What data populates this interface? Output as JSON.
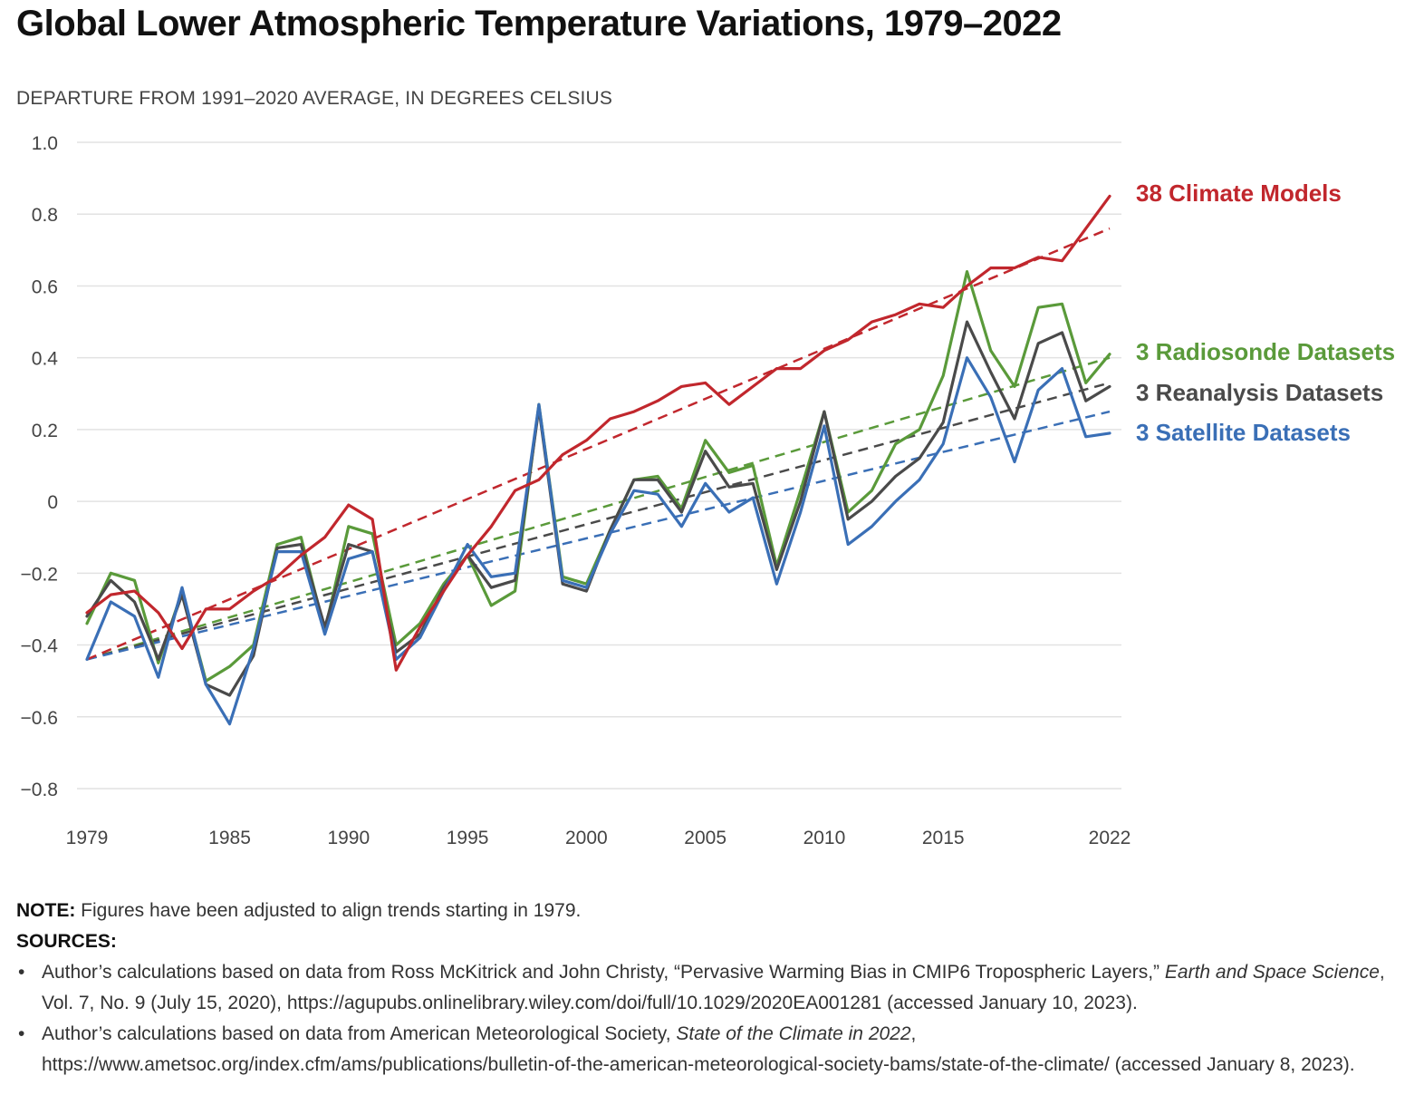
{
  "title": "Global Lower Atmospheric Temperature Variations, 1979–2022",
  "subtitle": "DEPARTURE FROM 1991–2020 AVERAGE, IN DEGREES CELSIUS",
  "note": {
    "label": "NOTE:",
    "text": " Figures have been adjusted to align trends starting in 1979."
  },
  "sources": {
    "label": "SOURCES:",
    "items": [
      {
        "pre": "Author’s calculations based on data from Ross McKitrick and John Christy, “Pervasive Warming Bias in CMIP6 Tropospheric Layers,” ",
        "ital": "Earth and Space Science",
        "post": ", Vol. 7, No. 9 (July 15, 2020), https://agupubs.onlinelibrary.wiley.com/doi/full/10.1029/2020EA001281 (accessed January 10, 2023)."
      },
      {
        "pre": "Author’s calculations based on data from American Meteorological Society, ",
        "ital": "State of the Climate in 2022",
        "post": ", https://www.ametsoc.org/index.cfm/ams/publications/bulletin-of-the-american-meteorological-society-bams/state-of-the-climate/ (accessed January 8, 2023)."
      }
    ]
  },
  "chart_data": {
    "type": "line",
    "x_start": 1979,
    "x_end": 2022,
    "xlim": [
      1979,
      2022
    ],
    "ylim": [
      -0.8,
      1.0
    ],
    "x_ticks": [
      1979,
      1985,
      1990,
      1995,
      2000,
      2005,
      2010,
      2015,
      2022
    ],
    "x_tick_labels": [
      "1979",
      "1985",
      "1990",
      "1995",
      "2000",
      "2005",
      "2010",
      "2015",
      "2022"
    ],
    "y_ticks": [
      1.0,
      0.8,
      0.6,
      0.4,
      0.2,
      0,
      -0.2,
      -0.4,
      -0.6,
      -0.8
    ],
    "y_tick_labels": [
      "1.0",
      "0.8",
      "0.6",
      "0.4",
      "0.2",
      "0",
      "−0.2",
      "−0.4",
      "−0.6",
      "−0.8"
    ],
    "grid": true,
    "legend": "right",
    "series": [
      {
        "name": "38 Climate Models",
        "color": "#c1272d",
        "values": [
          -0.31,
          -0.26,
          -0.25,
          -0.31,
          -0.41,
          -0.3,
          -0.3,
          -0.25,
          -0.21,
          -0.15,
          -0.1,
          -0.01,
          -0.05,
          -0.47,
          -0.35,
          -0.25,
          -0.15,
          -0.07,
          0.03,
          0.06,
          0.13,
          0.17,
          0.23,
          0.25,
          0.28,
          0.32,
          0.33,
          0.27,
          0.32,
          0.37,
          0.37,
          0.42,
          0.45,
          0.5,
          0.52,
          0.55,
          0.54,
          0.6,
          0.65,
          0.65,
          0.68,
          0.67,
          0.76,
          0.85
        ],
        "trend": [
          -0.44,
          0.76
        ]
      },
      {
        "name": "3 Radiosonde Datasets",
        "color": "#5a9a3a",
        "values": [
          -0.34,
          -0.2,
          -0.22,
          -0.45,
          -0.25,
          -0.5,
          -0.46,
          -0.4,
          -0.12,
          -0.1,
          -0.36,
          -0.07,
          -0.09,
          -0.4,
          -0.34,
          -0.23,
          -0.15,
          -0.29,
          -0.25,
          0.27,
          -0.21,
          -0.23,
          -0.08,
          0.06,
          0.07,
          -0.02,
          0.17,
          0.08,
          0.1,
          -0.18,
          0.03,
          0.25,
          -0.03,
          0.03,
          0.16,
          0.2,
          0.35,
          0.64,
          0.42,
          0.32,
          0.54,
          0.55,
          0.33,
          0.41
        ],
        "trend": [
          -0.44,
          0.4
        ]
      },
      {
        "name": "3 Reanalysis Datasets",
        "color": "#4a4a4a",
        "values": [
          -0.32,
          -0.22,
          -0.28,
          -0.44,
          -0.26,
          -0.51,
          -0.54,
          -0.43,
          -0.13,
          -0.12,
          -0.35,
          -0.12,
          -0.14,
          -0.42,
          -0.37,
          -0.24,
          -0.15,
          -0.24,
          -0.22,
          0.26,
          -0.23,
          -0.25,
          -0.08,
          0.06,
          0.06,
          -0.03,
          0.14,
          0.04,
          0.05,
          -0.19,
          0.0,
          0.25,
          -0.05,
          0.0,
          0.07,
          0.12,
          0.22,
          0.5,
          0.36,
          0.23,
          0.44,
          0.47,
          0.28,
          0.32
        ],
        "trend": [
          -0.44,
          0.33
        ]
      },
      {
        "name": "3 Satellite Datasets",
        "color": "#3a6fb6",
        "values": [
          -0.44,
          -0.28,
          -0.32,
          -0.49,
          -0.24,
          -0.51,
          -0.62,
          -0.41,
          -0.14,
          -0.14,
          -0.37,
          -0.16,
          -0.14,
          -0.44,
          -0.38,
          -0.25,
          -0.12,
          -0.21,
          -0.2,
          0.27,
          -0.22,
          -0.24,
          -0.09,
          0.03,
          0.02,
          -0.07,
          0.05,
          -0.03,
          0.01,
          -0.23,
          -0.03,
          0.21,
          -0.12,
          -0.07,
          0.0,
          0.06,
          0.16,
          0.4,
          0.29,
          0.11,
          0.31,
          0.37,
          0.18,
          0.19
        ],
        "trend": [
          -0.44,
          0.25
        ]
      }
    ]
  }
}
